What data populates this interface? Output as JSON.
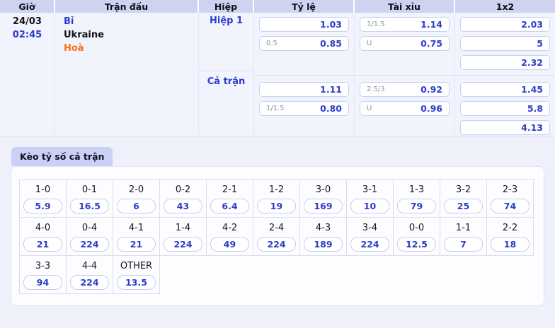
{
  "colors": {
    "accent_blue": "#2b3ccc",
    "accent_orange": "#ff6f14",
    "header_bg": "#cdd3f0",
    "tab_bg": "#c9d1f7",
    "table_body_bg": "#f2f4fd",
    "page_bg": "#eef0fa"
  },
  "odds_table": {
    "headers": {
      "time": "Giờ",
      "match": "Trận đấu",
      "period": "Hiệp",
      "handicap": "Tỷ lệ",
      "over_under": "Tài xỉu",
      "onextwo": "1x2"
    },
    "match": {
      "date": "24/03",
      "time": "02:45",
      "home": "Bỉ",
      "away": "Ukraine",
      "draw": "Hoà"
    },
    "periods": [
      {
        "label": "Hiệp 1",
        "handicap": [
          {
            "line": "",
            "odds": "1.03"
          },
          {
            "line": "0.5",
            "odds": "0.85"
          }
        ],
        "totals": [
          {
            "line": "1/1.5",
            "odds": "1.14"
          },
          {
            "line": "U",
            "odds": "0.75"
          }
        ],
        "onextwo": [
          "2.03",
          "5",
          "2.32"
        ]
      },
      {
        "label": "Cả trận",
        "handicap": [
          {
            "line": "",
            "odds": "1.11"
          },
          {
            "line": "1/1.5",
            "odds": "0.80"
          }
        ],
        "totals": [
          {
            "line": "2.5/3",
            "odds": "0.92"
          },
          {
            "line": "U",
            "odds": "0.96"
          }
        ],
        "onextwo": [
          "1.45",
          "5.8",
          "4.13"
        ]
      }
    ]
  },
  "correct_score": {
    "tab_label": "Kèo tỷ số cả trận",
    "rows": [
      [
        {
          "score": "1-0",
          "odds": "5.9"
        },
        {
          "score": "0-1",
          "odds": "16.5"
        },
        {
          "score": "2-0",
          "odds": "6"
        },
        {
          "score": "0-2",
          "odds": "43"
        },
        {
          "score": "2-1",
          "odds": "6.4"
        },
        {
          "score": "1-2",
          "odds": "19"
        },
        {
          "score": "3-0",
          "odds": "169"
        },
        {
          "score": "3-1",
          "odds": "10"
        },
        {
          "score": "1-3",
          "odds": "79"
        },
        {
          "score": "3-2",
          "odds": "25"
        },
        {
          "score": "2-3",
          "odds": "74"
        }
      ],
      [
        {
          "score": "4-0",
          "odds": "21"
        },
        {
          "score": "0-4",
          "odds": "224"
        },
        {
          "score": "4-1",
          "odds": "21"
        },
        {
          "score": "1-4",
          "odds": "224"
        },
        {
          "score": "4-2",
          "odds": "49"
        },
        {
          "score": "2-4",
          "odds": "224"
        },
        {
          "score": "4-3",
          "odds": "189"
        },
        {
          "score": "3-4",
          "odds": "224"
        },
        {
          "score": "0-0",
          "odds": "12.5"
        },
        {
          "score": "1-1",
          "odds": "7"
        },
        {
          "score": "2-2",
          "odds": "18"
        }
      ],
      [
        {
          "score": "3-3",
          "odds": "94"
        },
        {
          "score": "4-4",
          "odds": "224"
        },
        {
          "score": "OTHER",
          "odds": "13.5"
        }
      ]
    ]
  }
}
